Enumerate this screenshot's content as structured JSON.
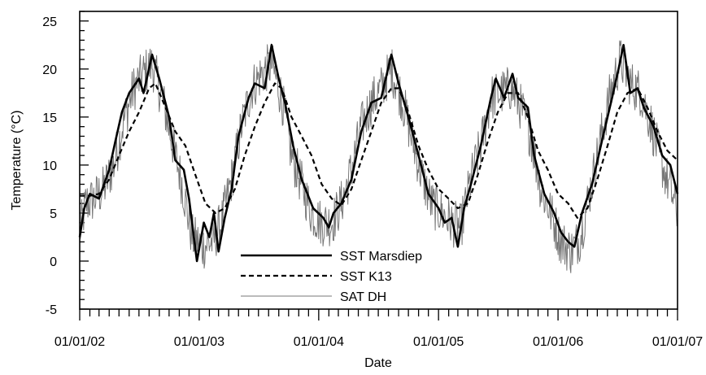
{
  "chart_data": {
    "type": "line",
    "title": "",
    "xlabel": "Date",
    "ylabel": "Temperature (°C)",
    "xlim": [
      "2002-01-01",
      "2007-01-01"
    ],
    "ylim": [
      -5,
      26
    ],
    "x_ticks": [
      "01/01/02",
      "01/01/03",
      "01/01/04",
      "01/01/05",
      "01/01/06",
      "01/01/07"
    ],
    "y_ticks": [
      -5,
      0,
      5,
      10,
      15,
      20,
      25
    ],
    "grid": false,
    "legend_position": "bottom-center",
    "series": [
      {
        "name": "SST Marsdiep",
        "style": "solid-thick",
        "color": "#000000",
        "points": [
          [
            "2002-01-01",
            2.5
          ],
          [
            "2002-01-15",
            5.5
          ],
          [
            "2002-02-01",
            7.0
          ],
          [
            "2002-03-01",
            6.5
          ],
          [
            "2002-04-01",
            9.5
          ],
          [
            "2002-04-20",
            12.5
          ],
          [
            "2002-05-10",
            15.5
          ],
          [
            "2002-06-01",
            17.5
          ],
          [
            "2002-07-01",
            19.0
          ],
          [
            "2002-07-15",
            17.5
          ],
          [
            "2002-08-10",
            21.5
          ],
          [
            "2002-09-01",
            19.0
          ],
          [
            "2002-10-01",
            15.0
          ],
          [
            "2002-10-20",
            10.5
          ],
          [
            "2002-11-15",
            9.5
          ],
          [
            "2002-12-01",
            6.5
          ],
          [
            "2002-12-25",
            0.0
          ],
          [
            "2003-01-15",
            4.0
          ],
          [
            "2003-02-01",
            2.5
          ],
          [
            "2003-02-15",
            5.0
          ],
          [
            "2003-03-01",
            1.0
          ],
          [
            "2003-03-20",
            4.5
          ],
          [
            "2003-04-10",
            7.5
          ],
          [
            "2003-05-01",
            13.0
          ],
          [
            "2003-06-01",
            17.0
          ],
          [
            "2003-06-20",
            18.5
          ],
          [
            "2003-07-20",
            18.0
          ],
          [
            "2003-08-10",
            22.5
          ],
          [
            "2003-09-01",
            19.0
          ],
          [
            "2003-09-20",
            16.5
          ],
          [
            "2003-10-15",
            12.0
          ],
          [
            "2003-11-10",
            8.5
          ],
          [
            "2003-12-15",
            5.5
          ],
          [
            "2004-01-15",
            4.5
          ],
          [
            "2004-02-01",
            3.5
          ],
          [
            "2004-02-15",
            5.0
          ],
          [
            "2004-03-10",
            6.0
          ],
          [
            "2004-04-10",
            8.5
          ],
          [
            "2004-05-10",
            13.5
          ],
          [
            "2004-06-10",
            16.5
          ],
          [
            "2004-07-10",
            17.0
          ],
          [
            "2004-08-10",
            21.5
          ],
          [
            "2004-09-01",
            18.5
          ],
          [
            "2004-10-01",
            15.0
          ],
          [
            "2004-11-01",
            11.0
          ],
          [
            "2004-12-01",
            7.0
          ],
          [
            "2005-01-01",
            5.5
          ],
          [
            "2005-01-20",
            4.0
          ],
          [
            "2005-02-10",
            4.5
          ],
          [
            "2005-03-01",
            1.5
          ],
          [
            "2005-03-20",
            5.5
          ],
          [
            "2005-04-10",
            8.0
          ],
          [
            "2005-05-10",
            12.0
          ],
          [
            "2005-06-10",
            17.0
          ],
          [
            "2005-06-25",
            19.0
          ],
          [
            "2005-07-20",
            17.0
          ],
          [
            "2005-08-15",
            19.5
          ],
          [
            "2005-09-01",
            17.0
          ],
          [
            "2005-10-01",
            16.0
          ],
          [
            "2005-10-20",
            11.0
          ],
          [
            "2005-11-20",
            7.0
          ],
          [
            "2005-12-20",
            5.0
          ],
          [
            "2006-01-10",
            3.0
          ],
          [
            "2006-02-01",
            2.0
          ],
          [
            "2006-02-20",
            1.5
          ],
          [
            "2006-03-15",
            5.0
          ],
          [
            "2006-04-15",
            8.0
          ],
          [
            "2006-05-15",
            12.5
          ],
          [
            "2006-06-15",
            17.0
          ],
          [
            "2006-07-05",
            20.0
          ],
          [
            "2006-07-20",
            22.5
          ],
          [
            "2006-08-10",
            17.5
          ],
          [
            "2006-09-01",
            18.0
          ],
          [
            "2006-09-20",
            16.0
          ],
          [
            "2006-10-20",
            14.0
          ],
          [
            "2006-11-15",
            11.0
          ],
          [
            "2006-12-10",
            10.0
          ],
          [
            "2007-01-01",
            7.0
          ]
        ]
      },
      {
        "name": "SST K13",
        "style": "dashed",
        "color": "#000000",
        "points": [
          [
            "2002-01-01",
            6.8
          ],
          [
            "2002-02-01",
            6.8
          ],
          [
            "2002-03-01",
            7.0
          ],
          [
            "2002-04-01",
            8.5
          ],
          [
            "2002-05-01",
            11.0
          ],
          [
            "2002-06-01",
            13.5
          ],
          [
            "2002-07-01",
            15.5
          ],
          [
            "2002-08-01",
            18.0
          ],
          [
            "2002-08-20",
            18.5
          ],
          [
            "2002-09-20",
            16.0
          ],
          [
            "2002-10-20",
            13.5
          ],
          [
            "2002-11-20",
            12.0
          ],
          [
            "2002-12-20",
            9.0
          ],
          [
            "2003-01-20",
            6.0
          ],
          [
            "2003-02-20",
            5.0
          ],
          [
            "2003-03-20",
            5.5
          ],
          [
            "2003-04-20",
            7.5
          ],
          [
            "2003-05-20",
            11.0
          ],
          [
            "2003-06-20",
            14.0
          ],
          [
            "2003-07-20",
            16.5
          ],
          [
            "2003-08-20",
            18.5
          ],
          [
            "2003-09-10",
            18.0
          ],
          [
            "2003-10-10",
            15.0
          ],
          [
            "2003-11-10",
            13.0
          ],
          [
            "2003-12-10",
            11.0
          ],
          [
            "2004-01-10",
            8.0
          ],
          [
            "2004-02-10",
            6.5
          ],
          [
            "2004-03-10",
            5.8
          ],
          [
            "2004-04-10",
            7.5
          ],
          [
            "2004-05-10",
            10.5
          ],
          [
            "2004-06-10",
            13.5
          ],
          [
            "2004-07-10",
            16.5
          ],
          [
            "2004-08-10",
            18.0
          ],
          [
            "2004-09-01",
            18.0
          ],
          [
            "2004-10-01",
            15.5
          ],
          [
            "2004-11-01",
            12.0
          ],
          [
            "2004-12-01",
            9.5
          ],
          [
            "2005-01-01",
            7.5
          ],
          [
            "2005-02-01",
            6.5
          ],
          [
            "2005-03-01",
            5.5
          ],
          [
            "2005-04-01",
            6.0
          ],
          [
            "2005-05-01",
            9.0
          ],
          [
            "2005-06-01",
            12.5
          ],
          [
            "2005-07-01",
            15.5
          ],
          [
            "2005-08-01",
            17.5
          ],
          [
            "2005-09-01",
            17.5
          ],
          [
            "2005-10-01",
            15.0
          ],
          [
            "2005-11-01",
            11.5
          ],
          [
            "2005-12-01",
            9.5
          ],
          [
            "2006-01-01",
            7.0
          ],
          [
            "2006-02-01",
            6.0
          ],
          [
            "2006-03-01",
            4.5
          ],
          [
            "2006-04-01",
            5.5
          ],
          [
            "2006-05-01",
            8.5
          ],
          [
            "2006-06-01",
            12.0
          ],
          [
            "2006-07-01",
            15.5
          ],
          [
            "2006-08-01",
            17.5
          ],
          [
            "2006-09-01",
            18.0
          ],
          [
            "2006-10-01",
            16.0
          ],
          [
            "2006-11-01",
            13.5
          ],
          [
            "2006-12-01",
            11.5
          ],
          [
            "2007-01-01",
            10.5
          ]
        ]
      },
      {
        "name": "SAT DH",
        "style": "solid-thin",
        "color": "#777777",
        "points": [
          [
            "2002-01-01",
            3.0
          ],
          [
            "2002-01-20",
            6.0
          ],
          [
            "2002-02-15",
            6.5
          ],
          [
            "2002-03-15",
            7.5
          ],
          [
            "2002-04-15",
            10.0
          ],
          [
            "2002-05-15",
            14.5
          ],
          [
            "2002-06-15",
            18.0
          ],
          [
            "2002-07-15",
            19.5
          ],
          [
            "2002-08-10",
            20.5
          ],
          [
            "2002-09-10",
            17.0
          ],
          [
            "2002-10-10",
            12.5
          ],
          [
            "2002-11-10",
            8.0
          ],
          [
            "2002-12-10",
            2.5
          ],
          [
            "2003-01-10",
            1.5
          ],
          [
            "2003-02-10",
            2.0
          ],
          [
            "2003-03-10",
            4.0
          ],
          [
            "2003-04-10",
            8.5
          ],
          [
            "2003-05-10",
            14.0
          ],
          [
            "2003-06-10",
            18.0
          ],
          [
            "2003-07-10",
            19.5
          ],
          [
            "2003-08-10",
            20.5
          ],
          [
            "2003-09-10",
            17.0
          ],
          [
            "2003-10-10",
            11.0
          ],
          [
            "2003-11-10",
            8.0
          ],
          [
            "2003-12-10",
            5.0
          ],
          [
            "2004-01-10",
            4.0
          ],
          [
            "2004-02-10",
            4.0
          ],
          [
            "2004-03-10",
            6.0
          ],
          [
            "2004-04-10",
            9.5
          ],
          [
            "2004-05-10",
            14.0
          ],
          [
            "2004-06-10",
            16.5
          ],
          [
            "2004-07-10",
            18.0
          ],
          [
            "2004-08-10",
            20.0
          ],
          [
            "2004-09-10",
            17.0
          ],
          [
            "2004-10-10",
            13.0
          ],
          [
            "2004-11-10",
            9.0
          ],
          [
            "2004-12-10",
            6.0
          ],
          [
            "2005-01-10",
            5.0
          ],
          [
            "2005-02-10",
            4.0
          ],
          [
            "2005-03-10",
            3.5
          ],
          [
            "2005-04-10",
            8.5
          ],
          [
            "2005-05-10",
            12.0
          ],
          [
            "2005-06-10",
            17.0
          ],
          [
            "2005-07-10",
            17.5
          ],
          [
            "2005-08-10",
            18.0
          ],
          [
            "2005-09-10",
            16.0
          ],
          [
            "2005-10-10",
            13.0
          ],
          [
            "2005-11-10",
            7.5
          ],
          [
            "2005-12-10",
            5.0
          ],
          [
            "2006-01-10",
            2.0
          ],
          [
            "2006-02-10",
            1.0
          ],
          [
            "2006-03-10",
            2.5
          ],
          [
            "2006-04-10",
            7.5
          ],
          [
            "2006-05-10",
            12.5
          ],
          [
            "2006-06-10",
            17.5
          ],
          [
            "2006-07-10",
            21.0
          ],
          [
            "2006-08-10",
            18.5
          ],
          [
            "2006-09-10",
            17.5
          ],
          [
            "2006-10-10",
            14.5
          ],
          [
            "2006-11-10",
            10.5
          ],
          [
            "2006-12-10",
            7.5
          ],
          [
            "2007-01-01",
            5.0
          ]
        ],
        "noise_amplitude": 2.5
      }
    ]
  }
}
